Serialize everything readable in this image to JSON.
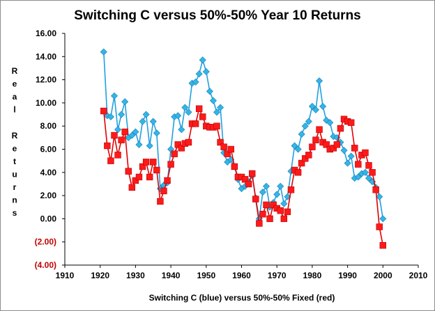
{
  "chart_data": {
    "type": "line",
    "title": "Switching C versus 50%-50% Year 10 Returns",
    "xlabel": "Switching C (blue) versus 50%-50% Fixed (red)",
    "ylabel": "Real Returns",
    "xlim": [
      1910,
      2010
    ],
    "ylim": [
      -4,
      16
    ],
    "x_ticks": [
      1910,
      1920,
      1930,
      1940,
      1950,
      1960,
      1970,
      1980,
      1990,
      2000,
      2010
    ],
    "y_ticks": [
      {
        "value": 16,
        "label": "16.00"
      },
      {
        "value": 14,
        "label": "14.00"
      },
      {
        "value": 12,
        "label": "12.00"
      },
      {
        "value": 10,
        "label": "10.00"
      },
      {
        "value": 8,
        "label": "8.00"
      },
      {
        "value": 6,
        "label": "6.00"
      },
      {
        "value": 4,
        "label": "4.00"
      },
      {
        "value": 2,
        "label": "2.00"
      },
      {
        "value": 0,
        "label": "0.00"
      },
      {
        "value": -2,
        "label": "(2.00)"
      },
      {
        "value": -4,
        "label": "(4.00)"
      }
    ],
    "negative_tick_color": "#c00000",
    "grid": false,
    "series": [
      {
        "color": "#1fa0e0",
        "marker_fill": "#33b5e8",
        "marker": "diamond",
        "x": [
          1921,
          1922,
          1923,
          1924,
          1925,
          1926,
          1927,
          1928,
          1929,
          1930,
          1931,
          1932,
          1933,
          1934,
          1935,
          1936,
          1937,
          1938,
          1939,
          1940,
          1941,
          1942,
          1943,
          1944,
          1945,
          1946,
          1947,
          1948,
          1949,
          1950,
          1951,
          1952,
          1953,
          1954,
          1955,
          1956,
          1957,
          1958,
          1959,
          1960,
          1961,
          1962,
          1963,
          1964,
          1965,
          1966,
          1967,
          1968,
          1969,
          1970,
          1971,
          1972,
          1973,
          1974,
          1975,
          1976,
          1977,
          1978,
          1979,
          1980,
          1981,
          1982,
          1983,
          1984,
          1985,
          1986,
          1987,
          1988,
          1989,
          1990,
          1991,
          1992,
          1993,
          1994,
          1995,
          1996,
          1997,
          1998,
          1999,
          2000
        ],
        "values": [
          14.4,
          8.9,
          8.8,
          10.6,
          7.7,
          9.0,
          10.1,
          7.0,
          7.2,
          7.5,
          6.4,
          8.4,
          9.0,
          6.3,
          8.4,
          7.4,
          2.6,
          2.9,
          3.1,
          6.0,
          8.8,
          8.9,
          7.7,
          9.6,
          9.2,
          11.7,
          11.8,
          12.5,
          13.7,
          12.7,
          11.0,
          10.2,
          9.2,
          9.6,
          5.7,
          4.9,
          5.1,
          4.5,
          3.4,
          2.6,
          2.8,
          3.2,
          3.7,
          1.8,
          0.0,
          2.3,
          2.8,
          1.0,
          1.4,
          2.1,
          2.8,
          1.3,
          1.9,
          4.1,
          6.3,
          6.0,
          7.3,
          8.0,
          8.4,
          9.7,
          9.4,
          11.9,
          9.7,
          8.5,
          8.3,
          7.1,
          7.0,
          6.6,
          5.9,
          4.8,
          5.4,
          3.5,
          3.6,
          3.9,
          4.0,
          3.5,
          3.2,
          2.7,
          1.9,
          0.0
        ]
      },
      {
        "color": "#e00000",
        "marker_fill": "#ff1a1a",
        "marker": "square",
        "x": [
          1921,
          1922,
          1923,
          1924,
          1925,
          1926,
          1927,
          1928,
          1929,
          1930,
          1931,
          1932,
          1933,
          1934,
          1935,
          1936,
          1937,
          1938,
          1939,
          1940,
          1941,
          1942,
          1943,
          1944,
          1945,
          1946,
          1947,
          1948,
          1949,
          1950,
          1951,
          1952,
          1953,
          1954,
          1955,
          1956,
          1957,
          1958,
          1959,
          1960,
          1961,
          1962,
          1963,
          1964,
          1965,
          1966,
          1967,
          1968,
          1969,
          1970,
          1971,
          1972,
          1973,
          1974,
          1975,
          1976,
          1977,
          1978,
          1979,
          1980,
          1981,
          1982,
          1983,
          1984,
          1985,
          1986,
          1987,
          1988,
          1989,
          1990,
          1991,
          1992,
          1993,
          1994,
          1995,
          1996,
          1997,
          1998,
          1999,
          2000
        ],
        "values": [
          9.3,
          6.3,
          5.0,
          7.2,
          5.5,
          6.8,
          7.5,
          4.1,
          2.7,
          3.3,
          3.6,
          4.5,
          4.9,
          3.6,
          4.9,
          4.2,
          1.5,
          2.4,
          3.3,
          4.7,
          5.6,
          6.4,
          6.1,
          6.5,
          6.6,
          8.2,
          8.2,
          9.5,
          8.8,
          8.0,
          7.9,
          7.9,
          8.0,
          6.6,
          6.2,
          5.6,
          6.0,
          4.5,
          3.6,
          3.6,
          3.4,
          3.0,
          3.9,
          1.7,
          -0.4,
          0.4,
          1.2,
          0.0,
          1.2,
          0.9,
          0.7,
          0.0,
          0.6,
          2.5,
          4.2,
          4.0,
          4.8,
          5.2,
          5.5,
          6.2,
          6.8,
          7.7,
          6.6,
          6.4,
          6.0,
          6.1,
          6.4,
          7.8,
          8.6,
          8.4,
          8.3,
          6.1,
          4.7,
          5.5,
          5.7,
          4.6,
          4.0,
          2.5,
          -0.7,
          -2.3
        ]
      }
    ]
  }
}
